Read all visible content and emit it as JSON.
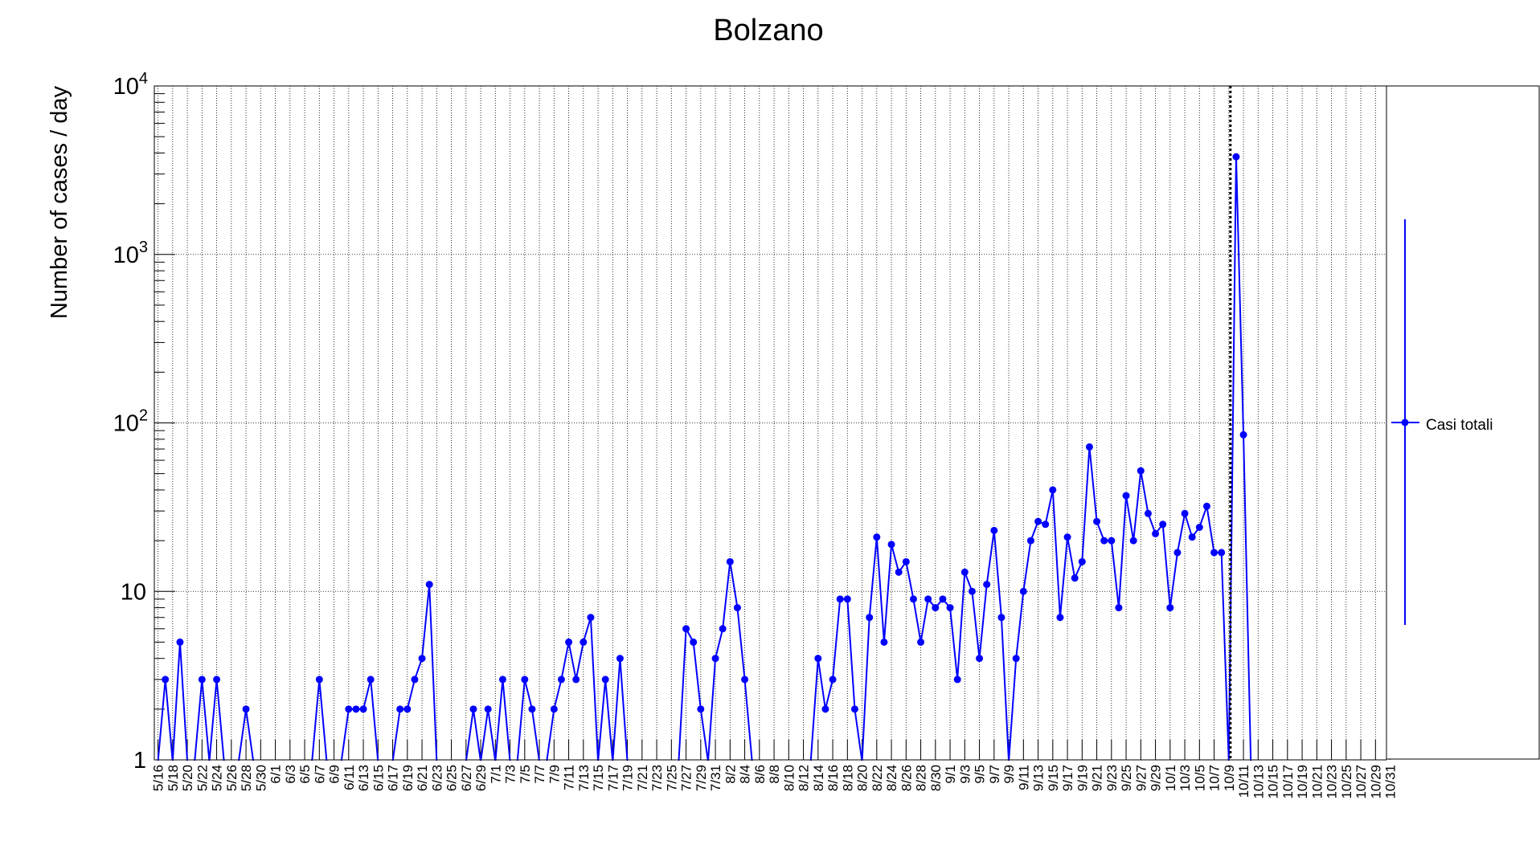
{
  "chart_data": {
    "type": "line",
    "title": "Bolzano",
    "xlabel": "",
    "ylabel": "Number of cases / day",
    "yscale": "log",
    "ylim": [
      1,
      10000
    ],
    "y_tick_labels": [
      "1",
      "10",
      "10^2",
      "10^3",
      "10^4"
    ],
    "grid": true,
    "legend": {
      "position": "right",
      "entries": [
        "Casi totali"
      ]
    },
    "x_tick_labels": [
      "5/16",
      "5/18",
      "5/20",
      "5/22",
      "5/24",
      "5/26",
      "5/28",
      "5/30",
      "6/1",
      "6/3",
      "6/5",
      "6/7",
      "6/9",
      "6/11",
      "6/13",
      "6/15",
      "6/17",
      "6/19",
      "6/21",
      "6/23",
      "6/25",
      "6/27",
      "6/29",
      "7/1",
      "7/3",
      "7/5",
      "7/7",
      "7/9",
      "7/11",
      "7/13",
      "7/15",
      "7/17",
      "7/19",
      "7/21",
      "7/23",
      "7/25",
      "7/27",
      "7/29",
      "7/31",
      "8/2",
      "8/4",
      "8/6",
      "8/8",
      "8/10",
      "8/12",
      "8/14",
      "8/16",
      "8/18",
      "8/20",
      "8/22",
      "8/24",
      "8/26",
      "8/28",
      "8/30",
      "9/1",
      "9/3",
      "9/5",
      "9/7",
      "9/9",
      "9/11",
      "9/13",
      "9/15",
      "9/17",
      "9/19",
      "9/21",
      "9/23",
      "9/25",
      "9/27",
      "9/29",
      "10/1",
      "10/3",
      "10/5",
      "10/7",
      "10/9",
      "10/11",
      "10/13",
      "10/15",
      "10/17",
      "10/19",
      "10/21",
      "10/23",
      "10/25",
      "10/27",
      "10/29",
      "10/31"
    ],
    "x_start": "5/16",
    "x_end": "10/31",
    "vertical_marker": "10/9",
    "series": [
      {
        "name": "Casi totali",
        "color": "#0000ff",
        "start_date": "5/16",
        "values": [
          0,
          3,
          0,
          5,
          0,
          0,
          3,
          0,
          3,
          0,
          0,
          0,
          2,
          0,
          0,
          0,
          0,
          0,
          0,
          0,
          0,
          0,
          3,
          0,
          0,
          0,
          2,
          2,
          2,
          3,
          0,
          0,
          0,
          2,
          2,
          3,
          4,
          11,
          0,
          0,
          0,
          0,
          0,
          2,
          0,
          2,
          0,
          3,
          0,
          0,
          3,
          2,
          0,
          0,
          2,
          3,
          5,
          3,
          5,
          7,
          0,
          3,
          0,
          4,
          0,
          0,
          0,
          0,
          0,
          0,
          0,
          0,
          6,
          5,
          2,
          0,
          4,
          6,
          15,
          8,
          3,
          0,
          0,
          0,
          0,
          0,
          0,
          0,
          0,
          0,
          4,
          2,
          3,
          9,
          9,
          2,
          0,
          7,
          21,
          5,
          19,
          13,
          15,
          9,
          5,
          9,
          8,
          9,
          8,
          3,
          13,
          10,
          4,
          11,
          23,
          7,
          0,
          4,
          10,
          20,
          26,
          25,
          40,
          7,
          21,
          12,
          15,
          72,
          26,
          20,
          20,
          8,
          37,
          20,
          52,
          29,
          22,
          25,
          8,
          17,
          29,
          21,
          24,
          32,
          17,
          17,
          0,
          3800,
          85,
          0
        ]
      }
    ]
  }
}
